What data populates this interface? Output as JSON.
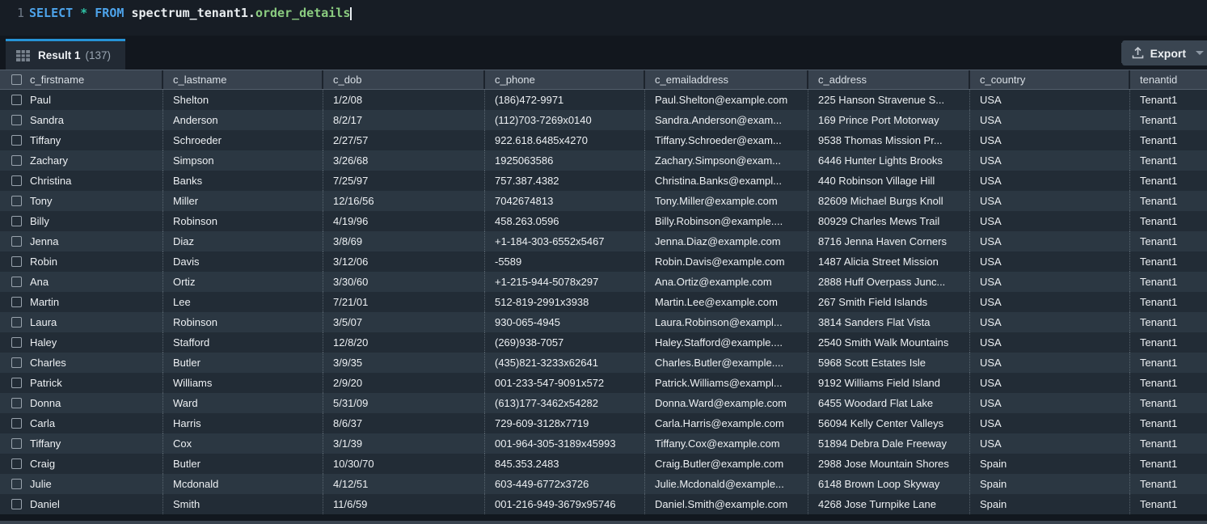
{
  "editor": {
    "line_number": "1",
    "tokens": [
      {
        "text": "SELECT ",
        "type": "keyword"
      },
      {
        "text": "* ",
        "type": "operator"
      },
      {
        "text": "FROM ",
        "type": "keyword"
      },
      {
        "text": "spectrum_tenant1.",
        "type": "plain"
      },
      {
        "text": "order_details",
        "type": "entity"
      }
    ]
  },
  "results_tab": {
    "label": "Result 1",
    "count": "(137)",
    "icon": "table-grid-icon"
  },
  "toolbar": {
    "export_label": "Export",
    "export_icon": "upload-icon",
    "caret_icon": "caret-down-icon"
  },
  "colors": {
    "tab_accent_blue": "#2693d6",
    "sql_keyword_blue": "#4da3ea",
    "sql_star_teal": "#2fc3a6",
    "sql_table_green": "#8bcc80",
    "row_dark": "#222c36",
    "row_light": "#2b3742",
    "header_bg": "#38424e"
  },
  "table": {
    "columns": [
      "c_firstname",
      "c_lastname",
      "c_dob",
      "c_phone",
      "c_emailaddress",
      "c_address",
      "c_country",
      "tenantid"
    ],
    "rows": [
      [
        "Paul",
        "Shelton",
        "1/2/08",
        "(186)472-9971",
        "Paul.Shelton@example.com",
        "225 Hanson Stravenue S...",
        "USA",
        "Tenant1"
      ],
      [
        "Sandra",
        "Anderson",
        "8/2/17",
        "(112)703-7269x0140",
        "Sandra.Anderson@exam...",
        "169 Prince Port Motorway",
        "USA",
        "Tenant1"
      ],
      [
        "Tiffany",
        "Schroeder",
        "2/27/57",
        "922.618.6485x4270",
        "Tiffany.Schroeder@exam...",
        "9538 Thomas Mission Pr...",
        "USA",
        "Tenant1"
      ],
      [
        "Zachary",
        "Simpson",
        "3/26/68",
        "1925063586",
        "Zachary.Simpson@exam...",
        "6446 Hunter Lights Brooks",
        "USA",
        "Tenant1"
      ],
      [
        "Christina",
        "Banks",
        "7/25/97",
        "757.387.4382",
        "Christina.Banks@exampl...",
        "440 Robinson Village Hill",
        "USA",
        "Tenant1"
      ],
      [
        "Tony",
        "Miller",
        "12/16/56",
        "7042674813",
        "Tony.Miller@example.com",
        "82609 Michael Burgs Knoll",
        "USA",
        "Tenant1"
      ],
      [
        "Billy",
        "Robinson",
        "4/19/96",
        "458.263.0596",
        "Billy.Robinson@example....",
        "80929 Charles Mews Trail",
        "USA",
        "Tenant1"
      ],
      [
        "Jenna",
        "Diaz",
        "3/8/69",
        "+1-184-303-6552x5467",
        "Jenna.Diaz@example.com",
        "8716 Jenna Haven Corners",
        "USA",
        "Tenant1"
      ],
      [
        "Robin",
        "Davis",
        "3/12/06",
        "-5589",
        "Robin.Davis@example.com",
        "1487 Alicia Street Mission",
        "USA",
        "Tenant1"
      ],
      [
        "Ana",
        "Ortiz",
        "3/30/60",
        "+1-215-944-5078x297",
        "Ana.Ortiz@example.com",
        "2888 Huff Overpass Junc...",
        "USA",
        "Tenant1"
      ],
      [
        "Martin",
        "Lee",
        "7/21/01",
        "512-819-2991x3938",
        "Martin.Lee@example.com",
        "267 Smith Field Islands",
        "USA",
        "Tenant1"
      ],
      [
        "Laura",
        "Robinson",
        "3/5/07",
        "930-065-4945",
        "Laura.Robinson@exampl...",
        "3814 Sanders Flat Vista",
        "USA",
        "Tenant1"
      ],
      [
        "Haley",
        "Stafford",
        "12/8/20",
        "(269)938-7057",
        "Haley.Stafford@example....",
        "2540 Smith Walk Mountains",
        "USA",
        "Tenant1"
      ],
      [
        "Charles",
        "Butler",
        "3/9/35",
        "(435)821-3233x62641",
        "Charles.Butler@example....",
        "5968 Scott Estates Isle",
        "USA",
        "Tenant1"
      ],
      [
        "Patrick",
        "Williams",
        "2/9/20",
        "001-233-547-9091x572",
        "Patrick.Williams@exampl...",
        "9192 Williams Field Island",
        "USA",
        "Tenant1"
      ],
      [
        "Donna",
        "Ward",
        "5/31/09",
        "(613)177-3462x54282",
        "Donna.Ward@example.com",
        "6455 Woodard Flat Lake",
        "USA",
        "Tenant1"
      ],
      [
        "Carla",
        "Harris",
        "8/6/37",
        "729-609-3128x7719",
        "Carla.Harris@example.com",
        "56094 Kelly Center Valleys",
        "USA",
        "Tenant1"
      ],
      [
        "Tiffany",
        "Cox",
        "3/1/39",
        "001-964-305-3189x45993",
        "Tiffany.Cox@example.com",
        "51894 Debra Dale Freeway",
        "USA",
        "Tenant1"
      ],
      [
        "Craig",
        "Butler",
        "10/30/70",
        "845.353.2483",
        "Craig.Butler@example.com",
        "2988 Jose Mountain Shores",
        "Spain",
        "Tenant1"
      ],
      [
        "Julie",
        "Mcdonald",
        "4/12/51",
        "603-449-6772x3726",
        "Julie.Mcdonald@example...",
        "6148 Brown Loop Skyway",
        "Spain",
        "Tenant1"
      ],
      [
        "Daniel",
        "Smith",
        "11/6/59",
        "001-216-949-3679x95746",
        "Daniel.Smith@example.com",
        "4268 Jose Turnpike Lane",
        "Spain",
        "Tenant1"
      ]
    ]
  }
}
